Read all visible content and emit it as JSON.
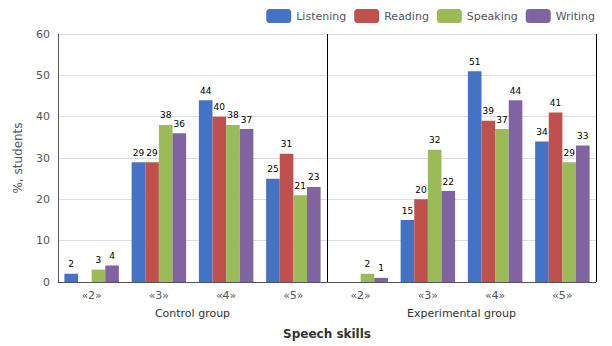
{
  "chart_data": {
    "type": "bar",
    "xlabel": "Speech skills",
    "ylabel": "%, students",
    "categories": [
      "«2»",
      "«3»",
      "«4»",
      "«5»",
      "«2»",
      "«3»",
      "«4»",
      "«5»"
    ],
    "annotations": [
      "Control group",
      "Experimental group"
    ],
    "series": [
      {
        "name": "Listening",
        "color": "#4472C4",
        "values": [
          2,
          29,
          44,
          25,
          0,
          15,
          51,
          34
        ],
        "value_labels": [
          "2",
          "29",
          "44",
          "25",
          null,
          "15",
          "51",
          "34"
        ]
      },
      {
        "name": "Reading",
        "color": "#C0504D",
        "values": [
          0,
          29,
          40,
          31,
          0,
          20,
          39,
          41
        ],
        "value_labels": [
          null,
          "29",
          "40",
          "31",
          null,
          "20",
          "39",
          "41"
        ]
      },
      {
        "name": "Speaking",
        "color": "#9BBB59",
        "values": [
          3,
          38,
          38,
          21,
          2,
          32,
          37,
          29
        ]
      },
      {
        "name": "Writing",
        "color": "#8064A2",
        "values": [
          4,
          36,
          37,
          23,
          1,
          22,
          44,
          33
        ]
      }
    ],
    "ylim": [
      0,
      60
    ],
    "yticks": [
      0,
      10,
      20,
      30,
      40,
      50,
      60
    ],
    "grid": true,
    "legend": "upper right",
    "data_labels": true
  }
}
